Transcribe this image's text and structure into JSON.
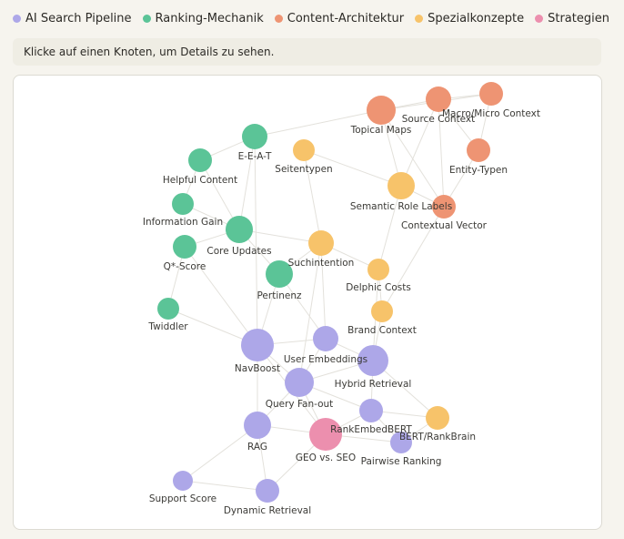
{
  "legend": {
    "items": [
      {
        "label": "AI Search Pipeline",
        "color": "#ada7e8"
      },
      {
        "label": "Ranking-Mechanik",
        "color": "#5bc497"
      },
      {
        "label": "Content-Architektur",
        "color": "#ee9473"
      },
      {
        "label": "Spezialkonzepte",
        "color": "#f7c36a"
      },
      {
        "label": "Strategien",
        "color": "#ec8fae"
      }
    ]
  },
  "info": {
    "text": "Klicke auf einen Knoten, um Details zu sehen."
  },
  "graph": {
    "nodes": [
      {
        "id": "topical-maps",
        "label": "Topical Maps",
        "group": 2
      },
      {
        "id": "source-context",
        "label": "Source Context",
        "group": 2
      },
      {
        "id": "macro-micro-context",
        "label": "Macro/Micro Context",
        "group": 2
      },
      {
        "id": "entity-typen",
        "label": "Entity-Typen",
        "group": 2
      },
      {
        "id": "contextual-vector",
        "label": "Contextual Vector",
        "group": 2
      },
      {
        "id": "eeat",
        "label": "E-E-A-T",
        "group": 1
      },
      {
        "id": "helpful-content",
        "label": "Helpful Content",
        "group": 1
      },
      {
        "id": "information-gain",
        "label": "Information Gain",
        "group": 1
      },
      {
        "id": "core-updates",
        "label": "Core Updates",
        "group": 1
      },
      {
        "id": "q-score",
        "label": "Q*-Score",
        "group": 1
      },
      {
        "id": "pertinenz",
        "label": "Pertinenz",
        "group": 1
      },
      {
        "id": "twiddler",
        "label": "Twiddler",
        "group": 1
      },
      {
        "id": "seitentypen",
        "label": "Seitentypen",
        "group": 3
      },
      {
        "id": "semantic-role-labels",
        "label": "Semantic Role Labels",
        "group": 3
      },
      {
        "id": "suchintention",
        "label": "Suchintention",
        "group": 3
      },
      {
        "id": "delphic-costs",
        "label": "Delphic Costs",
        "group": 3
      },
      {
        "id": "brand-context",
        "label": "Brand Context",
        "group": 3
      },
      {
        "id": "bert-rankbrain",
        "label": "BERT/RankBrain",
        "group": 3
      },
      {
        "id": "navboost",
        "label": "NavBoost",
        "group": 0
      },
      {
        "id": "user-embeddings",
        "label": "User Embeddings",
        "group": 0
      },
      {
        "id": "hybrid-retrieval",
        "label": "Hybrid Retrieval",
        "group": 0
      },
      {
        "id": "query-fan-out",
        "label": "Query Fan-out",
        "group": 0
      },
      {
        "id": "rankembedbert",
        "label": "RankEmbedBERT",
        "group": 0
      },
      {
        "id": "rag",
        "label": "RAG",
        "group": 0
      },
      {
        "id": "pairwise-ranking",
        "label": "Pairwise Ranking",
        "group": 0
      },
      {
        "id": "support-score",
        "label": "Support Score",
        "group": 0
      },
      {
        "id": "dynamic-retrieval",
        "label": "Dynamic Retrieval",
        "group": 0
      },
      {
        "id": "geo-vs-seo",
        "label": "GEO vs. SEO",
        "group": 4
      }
    ],
    "edges": [
      [
        "topical-maps",
        "source-context"
      ],
      [
        "topical-maps",
        "macro-micro-context"
      ],
      [
        "topical-maps",
        "contextual-vector"
      ],
      [
        "topical-maps",
        "semantic-role-labels"
      ],
      [
        "topical-maps",
        "eeat"
      ],
      [
        "source-context",
        "macro-micro-context"
      ],
      [
        "source-context",
        "entity-typen"
      ],
      [
        "source-context",
        "contextual-vector"
      ],
      [
        "source-context",
        "semantic-role-labels"
      ],
      [
        "macro-micro-context",
        "entity-typen"
      ],
      [
        "entity-typen",
        "contextual-vector"
      ],
      [
        "contextual-vector",
        "semantic-role-labels"
      ],
      [
        "contextual-vector",
        "brand-context"
      ],
      [
        "semantic-role-labels",
        "delphic-costs"
      ],
      [
        "semantic-role-labels",
        "seitentypen"
      ],
      [
        "seitentypen",
        "suchintention"
      ],
      [
        "eeat",
        "helpful-content"
      ],
      [
        "eeat",
        "core-updates"
      ],
      [
        "eeat",
        "navboost"
      ],
      [
        "helpful-content",
        "information-gain"
      ],
      [
        "helpful-content",
        "core-updates"
      ],
      [
        "information-gain",
        "core-updates"
      ],
      [
        "q-score",
        "core-updates"
      ],
      [
        "q-score",
        "twiddler"
      ],
      [
        "q-score",
        "navboost"
      ],
      [
        "core-updates",
        "suchintention"
      ],
      [
        "core-updates",
        "pertinenz"
      ],
      [
        "twiddler",
        "navboost"
      ],
      [
        "pertinenz",
        "suchintention"
      ],
      [
        "pertinenz",
        "user-embeddings"
      ],
      [
        "pertinenz",
        "navboost"
      ],
      [
        "suchintention",
        "query-fan-out"
      ],
      [
        "suchintention",
        "delphic-costs"
      ],
      [
        "suchintention",
        "user-embeddings"
      ],
      [
        "delphic-costs",
        "brand-context"
      ],
      [
        "delphic-costs",
        "hybrid-retrieval"
      ],
      [
        "brand-context",
        "hybrid-retrieval"
      ],
      [
        "navboost",
        "user-embeddings"
      ],
      [
        "navboost",
        "query-fan-out"
      ],
      [
        "navboost",
        "geo-vs-seo"
      ],
      [
        "navboost",
        "rag"
      ],
      [
        "user-embeddings",
        "hybrid-retrieval"
      ],
      [
        "user-embeddings",
        "query-fan-out"
      ],
      [
        "hybrid-retrieval",
        "query-fan-out"
      ],
      [
        "hybrid-retrieval",
        "rankembedbert"
      ],
      [
        "hybrid-retrieval",
        "bert-rankbrain"
      ],
      [
        "query-fan-out",
        "rag"
      ],
      [
        "query-fan-out",
        "geo-vs-seo"
      ],
      [
        "query-fan-out",
        "rankembedbert"
      ],
      [
        "rankembedbert",
        "bert-rankbrain"
      ],
      [
        "rankembedbert",
        "pairwise-ranking"
      ],
      [
        "rankembedbert",
        "geo-vs-seo"
      ],
      [
        "rag",
        "geo-vs-seo"
      ],
      [
        "rag",
        "support-score"
      ],
      [
        "rag",
        "dynamic-retrieval"
      ],
      [
        "geo-vs-seo",
        "pairwise-ranking"
      ],
      [
        "geo-vs-seo",
        "dynamic-retrieval"
      ],
      [
        "bert-rankbrain",
        "pairwise-ranking"
      ],
      [
        "dynamic-retrieval",
        "support-score"
      ]
    ]
  }
}
